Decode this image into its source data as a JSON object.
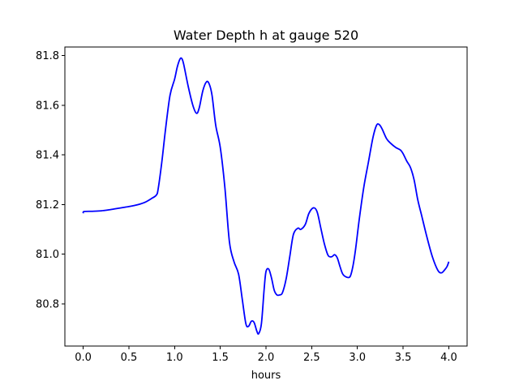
{
  "chart_data": {
    "type": "line",
    "title": "Water Depth h at gauge 520",
    "xlabel": "hours",
    "ylabel": "",
    "xlim": [
      -0.2,
      4.2
    ],
    "ylim": [
      80.63,
      81.835
    ],
    "xticks": [
      0.0,
      0.5,
      1.0,
      1.5,
      2.0,
      2.5,
      3.0,
      3.5,
      4.0
    ],
    "xtick_labels": [
      "0.0",
      "0.5",
      "1.0",
      "1.5",
      "2.0",
      "2.5",
      "3.0",
      "3.5",
      "4.0"
    ],
    "yticks": [
      80.8,
      81.0,
      81.2,
      81.4,
      81.6,
      81.8
    ],
    "ytick_labels": [
      "80.8",
      "81.0",
      "81.2",
      "81.4",
      "81.6",
      "81.8"
    ],
    "grid": false,
    "line_color": "#0000ff",
    "series": [
      {
        "x": [
          0.0,
          0.01,
          0.1,
          0.2,
          0.3,
          0.4,
          0.5,
          0.6,
          0.68,
          0.75,
          0.8,
          0.82,
          0.86,
          0.9,
          0.95,
          1.0,
          1.03,
          1.06,
          1.08,
          1.1,
          1.15,
          1.2,
          1.24,
          1.27,
          1.31,
          1.35,
          1.38,
          1.41,
          1.45,
          1.5,
          1.55,
          1.6,
          1.65,
          1.7,
          1.74,
          1.78,
          1.81,
          1.84,
          1.87,
          1.9,
          1.92,
          1.95,
          1.98,
          2.0,
          2.03,
          2.06,
          2.09,
          2.12,
          2.15,
          2.18,
          2.22,
          2.26,
          2.3,
          2.35,
          2.38,
          2.43,
          2.47,
          2.52,
          2.56,
          2.6,
          2.64,
          2.68,
          2.72,
          2.75,
          2.78,
          2.81,
          2.84,
          2.88,
          2.92,
          2.95,
          2.98,
          3.02,
          3.07,
          3.12,
          3.17,
          3.21,
          3.24,
          3.27,
          3.32,
          3.37,
          3.42,
          3.47,
          3.5,
          3.54,
          3.58,
          3.62,
          3.66,
          3.7,
          3.76,
          3.82,
          3.88,
          3.92,
          3.95,
          3.98,
          4.0
        ],
        "values": [
          81.165,
          81.172,
          81.173,
          81.175,
          81.18,
          81.186,
          81.192,
          81.2,
          81.21,
          81.225,
          81.238,
          81.262,
          81.37,
          81.5,
          81.64,
          81.705,
          81.755,
          81.787,
          81.788,
          81.765,
          81.675,
          81.6,
          81.568,
          81.59,
          81.66,
          81.695,
          81.685,
          81.64,
          81.52,
          81.43,
          81.27,
          81.05,
          80.97,
          80.92,
          80.82,
          80.72,
          80.71,
          80.73,
          80.725,
          80.69,
          80.68,
          80.72,
          80.86,
          80.93,
          80.94,
          80.905,
          80.855,
          80.836,
          80.836,
          80.845,
          80.9,
          80.99,
          81.08,
          81.105,
          81.1,
          81.12,
          81.165,
          81.187,
          81.17,
          81.105,
          81.04,
          80.995,
          80.99,
          80.998,
          80.985,
          80.95,
          80.92,
          80.908,
          80.91,
          80.95,
          81.02,
          81.14,
          81.27,
          81.37,
          81.47,
          81.52,
          81.522,
          81.505,
          81.465,
          81.445,
          81.43,
          81.42,
          81.405,
          81.375,
          81.35,
          81.3,
          81.22,
          81.16,
          81.07,
          80.99,
          80.935,
          80.925,
          80.935,
          80.95,
          80.97
        ]
      }
    ]
  }
}
